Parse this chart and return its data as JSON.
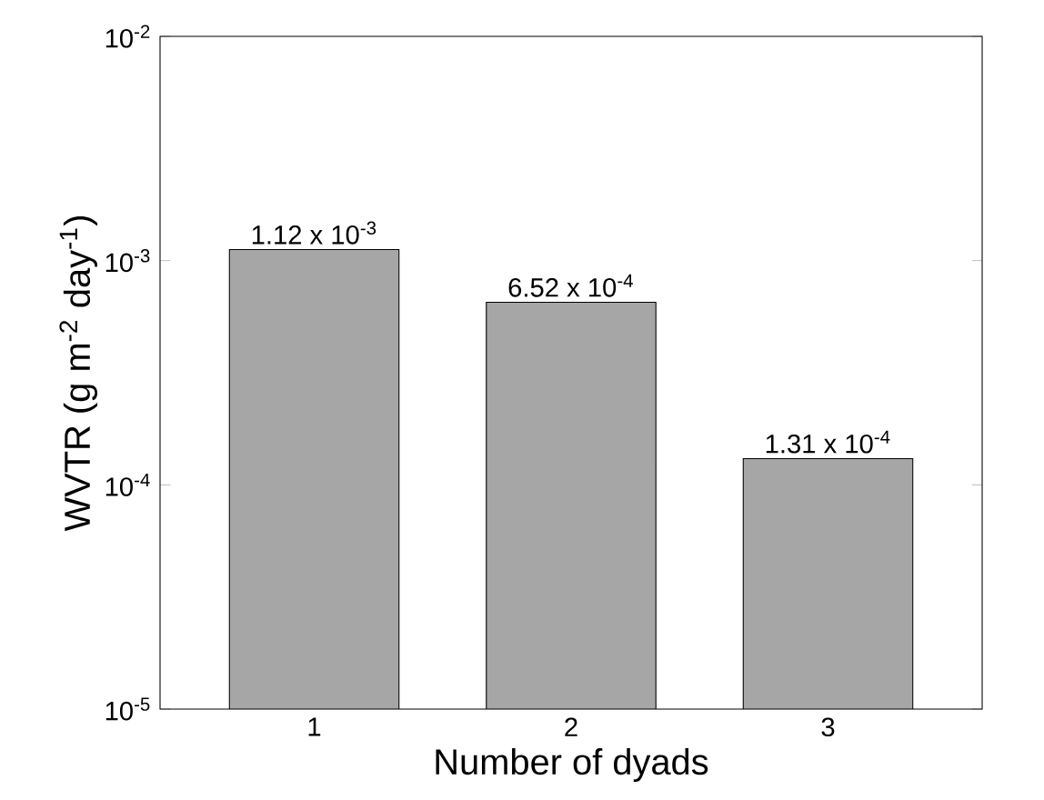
{
  "chart_data": {
    "type": "bar",
    "xlabel": "Number of dyads",
    "ylabel": "WVTR (g m$^{-2}$ day$^{-1}$)",
    "categories": [
      "1",
      "2",
      "3"
    ],
    "values": [
      0.00112,
      0.000652,
      0.000131
    ],
    "value_labels": [
      "1.12 x 10$^{-3}$",
      "6.52 x 10$^{-4}$",
      "1.31 x 10$^{-4}$"
    ],
    "color": "#a6a6a6",
    "log": "y",
    "ylim": [
      1e-05,
      0.01
    ],
    "yticks": [
      {
        "value": 1e-05,
        "label": "10$^{-5}$"
      },
      {
        "value": 0.0001,
        "label": "10$^{-4}$"
      },
      {
        "value": 0.001,
        "label": "10$^{-3}$"
      },
      {
        "value": 0.01,
        "label": "10$^{-2}$"
      }
    ],
    "grid": false
  }
}
